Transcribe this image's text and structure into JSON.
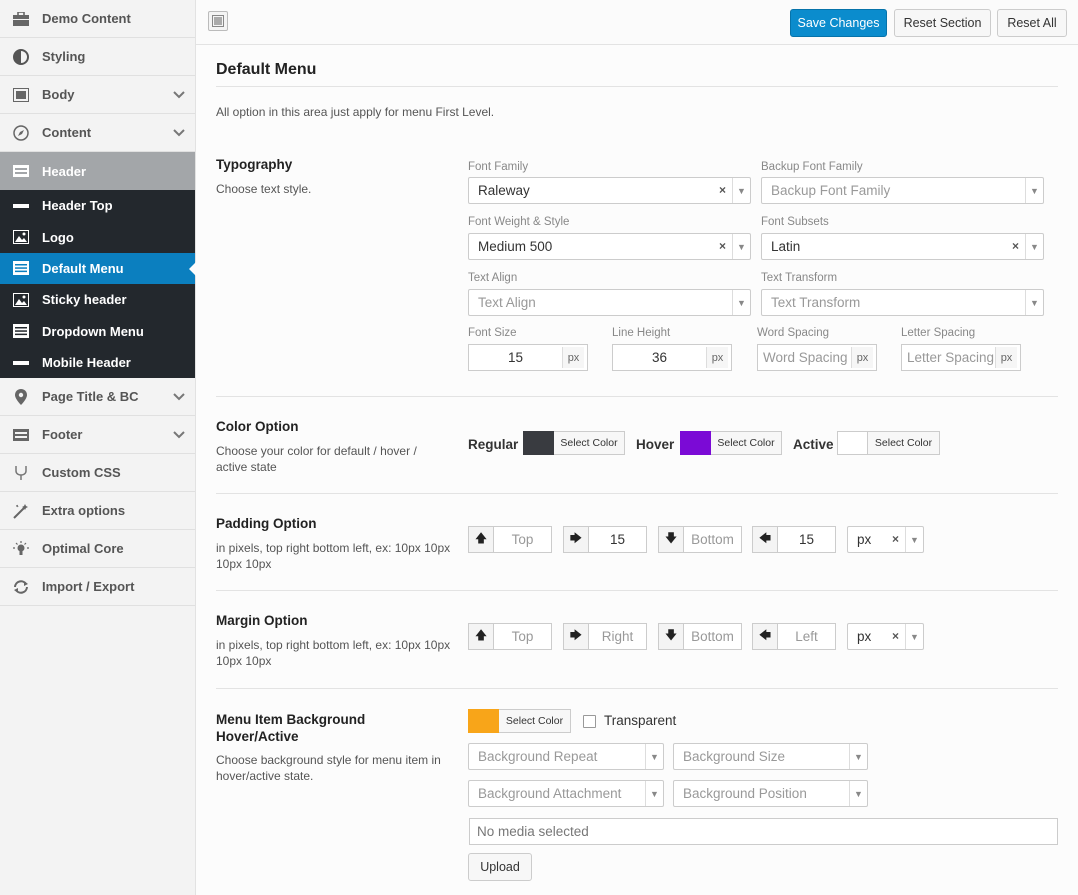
{
  "sidebar": {
    "items": [
      {
        "label": "Demo Content",
        "icon": "briefcase-icon"
      },
      {
        "label": "Styling",
        "icon": "contrast-icon"
      },
      {
        "label": "Body",
        "icon": "window-icon",
        "chevron": true
      },
      {
        "label": "Content",
        "icon": "compass-icon",
        "chevron": true
      },
      {
        "label": "Header",
        "icon": "header-icon",
        "active": true
      }
    ],
    "subitems": [
      {
        "label": "Header Top",
        "icon": "minus-icon"
      },
      {
        "label": "Logo",
        "icon": "image-icon"
      },
      {
        "label": "Default Menu",
        "icon": "menu-icon",
        "current": true
      },
      {
        "label": "Sticky header",
        "icon": "image-icon"
      },
      {
        "label": "Dropdown Menu",
        "icon": "menu-icon"
      },
      {
        "label": "Mobile Header",
        "icon": "minus-icon"
      }
    ],
    "items_after": [
      {
        "label": "Page Title & BC",
        "icon": "map-pin-icon",
        "chevron": true
      },
      {
        "label": "Footer",
        "icon": "footer-icon",
        "chevron": true
      },
      {
        "label": "Custom CSS",
        "icon": "css-icon"
      },
      {
        "label": "Extra options",
        "icon": "magic-wand-icon"
      },
      {
        "label": "Optimal Core",
        "icon": "lightbulb-icon"
      },
      {
        "label": "Import / Export",
        "icon": "refresh-icon"
      }
    ]
  },
  "toolbar": {
    "save_label": "Save Changes",
    "reset_section_label": "Reset Section",
    "reset_all_label": "Reset All",
    "accent": "#0b8ccd"
  },
  "page": {
    "title": "Default Menu",
    "description": "All option in this area just apply for menu First Level."
  },
  "typography": {
    "title": "Typography",
    "desc": "Choose text style.",
    "font_family_label": "Font Family",
    "font_family_value": "Raleway",
    "backup_font_label": "Backup Font Family",
    "backup_font_placeholder": "Backup Font Family",
    "weight_label": "Font Weight & Style",
    "weight_value": "Medium 500",
    "subsets_label": "Font Subsets",
    "subsets_value": "Latin",
    "align_label": "Text Align",
    "align_placeholder": "Text Align",
    "transform_label": "Text Transform",
    "transform_placeholder": "Text Transform",
    "size_label": "Font Size",
    "size_value": "15",
    "lineheight_label": "Line Height",
    "lineheight_value": "36",
    "wordspacing_label": "Word Spacing",
    "wordspacing_placeholder": "Word Spacing",
    "letterspacing_label": "Letter Spacing",
    "letterspacing_placeholder": "Letter Spacing",
    "unit": "px"
  },
  "color_option": {
    "title": "Color Option",
    "desc": "Choose your color for default / hover / active state",
    "regular_label": "Regular",
    "regular_color": "#393b40",
    "hover_label": "Hover",
    "hover_color": "#7b0ad6",
    "active_label": "Active",
    "active_color": "#ffffff",
    "select_color_label": "Select Color"
  },
  "padding": {
    "title": "Padding Option",
    "desc": "in pixels, top right bottom left, ex: 10px 10px 10px 10px",
    "top_placeholder": "Top",
    "right_value": "15",
    "bottom_placeholder": "Bottom",
    "left_value": "15",
    "unit": "px"
  },
  "margin": {
    "title": "Margin Option",
    "desc": "in pixels, top right bottom left, ex: 10px 10px 10px 10px",
    "top_placeholder": "Top",
    "right_placeholder": "Right",
    "bottom_placeholder": "Bottom",
    "left_placeholder": "Left",
    "unit": "px"
  },
  "menu_bg": {
    "title": "Menu Item Background Hover/Active",
    "desc": "Choose background style for menu item in hover/active state.",
    "color": "#f8a519",
    "select_color_label": "Select Color",
    "transparent_label": "Transparent",
    "repeat_placeholder": "Background Repeat",
    "size_placeholder": "Background Size",
    "attachment_placeholder": "Background Attachment",
    "position_placeholder": "Background Position",
    "media_text": "No media selected",
    "upload_label": "Upload"
  }
}
